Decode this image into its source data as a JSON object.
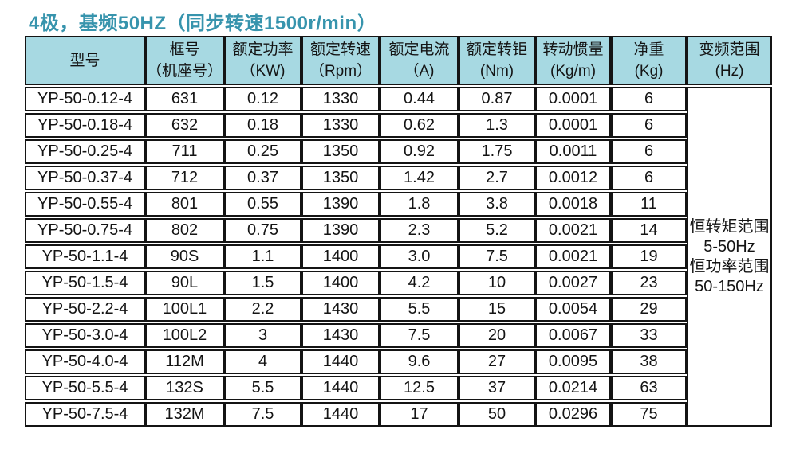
{
  "title": "4极，基频50HZ（同步转速1500r/min）",
  "colors": {
    "title_text": "#3794ad",
    "header_bg": "#a7d9e2",
    "border": "#141414",
    "body_text": "#141414",
    "page_bg": "#ffffff"
  },
  "table": {
    "headers": [
      {
        "id": "model",
        "line1": "型号",
        "line2": ""
      },
      {
        "id": "frame",
        "line1": "框号",
        "line2": "（机座号）"
      },
      {
        "id": "rated-power",
        "line1": "额定功率",
        "line2": "（KW)"
      },
      {
        "id": "rated-speed",
        "line1": "额定转速",
        "line2": "（Rpm）"
      },
      {
        "id": "rated-current",
        "line1": "额定电流",
        "line2": "（A)"
      },
      {
        "id": "rated-torque",
        "line1": "额定转钜",
        "line2": "(Nm)"
      },
      {
        "id": "inertia",
        "line1": "转动惯量",
        "line2": "(Kg/m)"
      },
      {
        "id": "net-weight",
        "line1": "净重",
        "line2": "(Kg)"
      },
      {
        "id": "freq-range",
        "line1": "变频范围",
        "line2": "(Hz)"
      }
    ],
    "rows": [
      [
        "YP-50-0.12-4",
        "631",
        "0.12",
        "1330",
        "0.44",
        "0.87",
        "0.0001",
        "6"
      ],
      [
        "YP-50-0.18-4",
        "632",
        "0.18",
        "1330",
        "0.62",
        "1.3",
        "0.0001",
        "6"
      ],
      [
        "YP-50-0.25-4",
        "711",
        "0.25",
        "1350",
        "0.92",
        "1.75",
        "0.0011",
        "6"
      ],
      [
        "YP-50-0.37-4",
        "712",
        "0.37",
        "1350",
        "1.42",
        "2.7",
        "0.0012",
        "6"
      ],
      [
        "YP-50-0.55-4",
        "801",
        "0.55",
        "1390",
        "1.8",
        "3.8",
        "0.0018",
        "11"
      ],
      [
        "YP-50-0.75-4",
        "802",
        "0.75",
        "1390",
        "2.3",
        "5.2",
        "0.0021",
        "14"
      ],
      [
        "YP-50-1.1-4",
        "90S",
        "1.1",
        "1400",
        "3.0",
        "7.5",
        "0.0021",
        "19"
      ],
      [
        "YP-50-1.5-4",
        "90L",
        "1.5",
        "1400",
        "4.2",
        "10",
        "0.0027",
        "23"
      ],
      [
        "YP-50-2.2-4",
        "100L1",
        "2.2",
        "1430",
        "5.5",
        "15",
        "0.0054",
        "29"
      ],
      [
        "YP-50-3.0-4",
        "100L2",
        "3",
        "1430",
        "7.5",
        "20",
        "0.0067",
        "33"
      ],
      [
        "YP-50-4.0-4",
        "112M",
        "4",
        "1440",
        "9.6",
        "27",
        "0.0095",
        "38"
      ],
      [
        "YP-50-5.5-4",
        "132S",
        "5.5",
        "1440",
        "12.5",
        "37",
        "0.0214",
        "63"
      ],
      [
        "YP-50-7.5-4",
        "132M",
        "7.5",
        "1440",
        "17",
        "50",
        "0.0296",
        "75"
      ]
    ],
    "freq_range_lines": [
      "恒转矩范围",
      "5-50Hz",
      "恒功率范围",
      "50-150Hz"
    ]
  }
}
